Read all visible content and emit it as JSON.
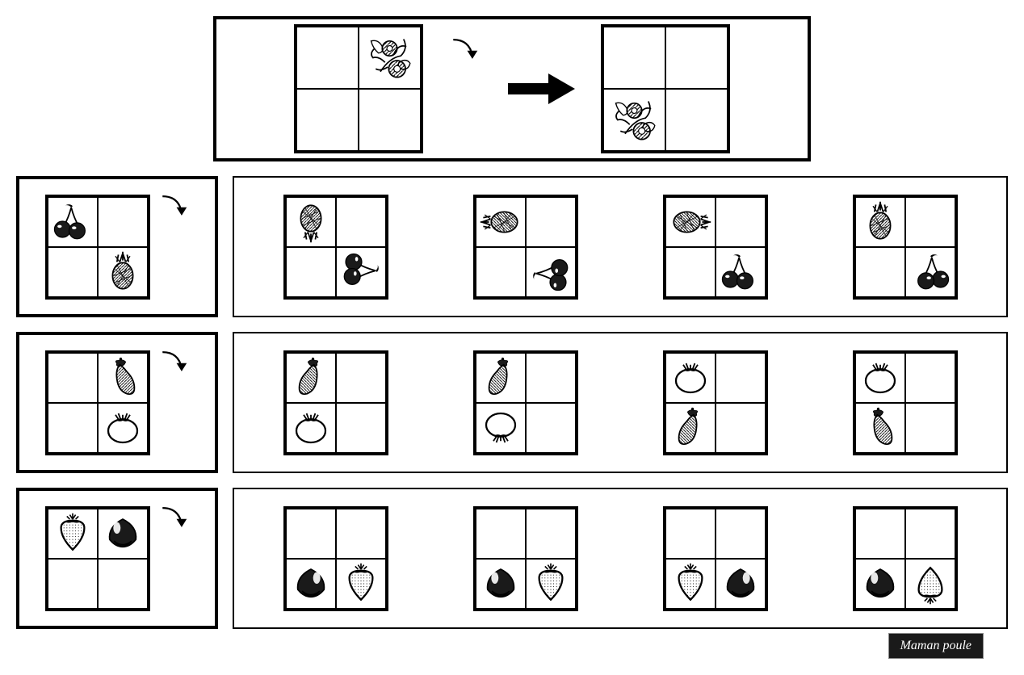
{
  "footer": {
    "label": "Maman poule"
  },
  "colors": {
    "stroke": "#000000",
    "fill_dark": "#1a1a1a",
    "background": "#ffffff"
  },
  "example": {
    "left_grid": {
      "cells": [
        "",
        "flower",
        "",
        ""
      ]
    },
    "arrow_between": "big-arrow-right",
    "rotation_indicator": "curved-arrow",
    "right_grid": {
      "cells": [
        "",
        "",
        "flower",
        ""
      ]
    }
  },
  "rows": [
    {
      "prompt": {
        "cells": [
          "cherries",
          "",
          "",
          "pineapple"
        ],
        "indicator": "curved-arrow"
      },
      "options": [
        {
          "cells": [
            "pineapple",
            "",
            "",
            "cherries"
          ],
          "transforms": [
            "rot180",
            "",
            "",
            "rot90"
          ]
        },
        {
          "cells": [
            "pineapple",
            "",
            "",
            "cherries"
          ],
          "transforms": [
            "rot270",
            "",
            "",
            "rot270"
          ]
        },
        {
          "cells": [
            "pineapple",
            "",
            "",
            "cherries"
          ],
          "transforms": [
            "rot90",
            "",
            "",
            ""
          ]
        },
        {
          "cells": [
            "pineapple",
            "",
            "",
            "cherries"
          ],
          "transforms": [
            "",
            "",
            "",
            "flipx"
          ]
        }
      ]
    },
    {
      "prompt": {
        "cells": [
          "",
          "eggplant",
          "",
          "tomato"
        ],
        "indicator": "curved-arrow"
      },
      "options": [
        {
          "cells": [
            "eggplant",
            "",
            "tomato",
            ""
          ],
          "transforms": [
            "flipx",
            "",
            "",
            ""
          ]
        },
        {
          "cells": [
            "eggplant",
            "",
            "tomato",
            ""
          ],
          "transforms": [
            "flipx",
            "",
            "rot180",
            ""
          ]
        },
        {
          "cells": [
            "tomato",
            "",
            "eggplant",
            ""
          ],
          "transforms": [
            "",
            "",
            "flipx",
            ""
          ]
        },
        {
          "cells": [
            "tomato",
            "",
            "eggplant",
            ""
          ],
          "transforms": [
            "",
            "",
            "",
            ""
          ]
        }
      ]
    },
    {
      "prompt": {
        "cells": [
          "strawberry",
          "chestnut",
          "",
          ""
        ],
        "indicator": "curved-arrow"
      },
      "options": [
        {
          "cells": [
            "",
            "",
            "chestnut",
            "strawberry"
          ],
          "transforms": [
            "",
            "",
            "flipx",
            "flipx"
          ]
        },
        {
          "cells": [
            "",
            "",
            "chestnut",
            "strawberry"
          ],
          "transforms": [
            "",
            "",
            "",
            "flipx"
          ]
        },
        {
          "cells": [
            "",
            "",
            "strawberry",
            "chestnut"
          ],
          "transforms": [
            "",
            "",
            "",
            "flipx"
          ]
        },
        {
          "cells": [
            "",
            "",
            "chestnut",
            "strawberry"
          ],
          "transforms": [
            "",
            "",
            "",
            "fliprot"
          ]
        }
      ]
    }
  ]
}
